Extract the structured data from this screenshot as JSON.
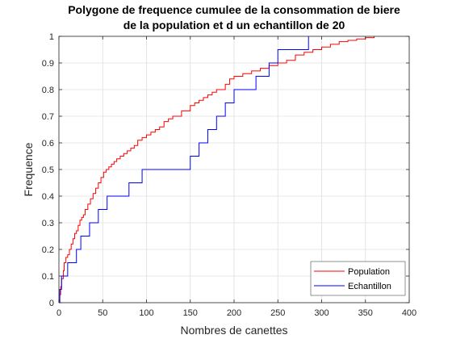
{
  "chart_data": {
    "type": "line",
    "title_lines": [
      "Polygone de frequence cumulee de la consommation de biere",
      "de la population et d un echantillon de 20"
    ],
    "xlabel": "Nombres de canettes",
    "ylabel": "Frequence",
    "xlim": [
      0,
      400
    ],
    "ylim": [
      0,
      1
    ],
    "xticks": [
      0,
      50,
      100,
      150,
      200,
      250,
      300,
      350,
      400
    ],
    "yticks": [
      0,
      0.1,
      0.2,
      0.3,
      0.4,
      0.5,
      0.6,
      0.7,
      0.8,
      0.9,
      1
    ],
    "xtick_labels": [
      "0",
      "50",
      "100",
      "150",
      "200",
      "250",
      "300",
      "350",
      "400"
    ],
    "ytick_labels": [
      "0",
      "0.1",
      "0.2",
      "0.3",
      "0.4",
      "0.5",
      "0.6",
      "0.7",
      "0.8",
      "0.9",
      "1"
    ],
    "grid": true,
    "legend_position": "bottom-right",
    "series": [
      {
        "name": "Population",
        "color": "#ff0000",
        "x": [
          0,
          1,
          2,
          3,
          5,
          6,
          8,
          10,
          12,
          14,
          16,
          18,
          20,
          22,
          24,
          26,
          28,
          30,
          33,
          36,
          39,
          42,
          45,
          48,
          51,
          54,
          57,
          60,
          63,
          66,
          70,
          74,
          78,
          82,
          86,
          90,
          95,
          100,
          105,
          110,
          115,
          120,
          125,
          130,
          140,
          150,
          155,
          160,
          165,
          170,
          175,
          180,
          190,
          195,
          200,
          210,
          220,
          230,
          240,
          250,
          260,
          270,
          280,
          290,
          300,
          310,
          320,
          330,
          340,
          350,
          360
        ],
        "y": [
          0,
          0.03,
          0.06,
          0.09,
          0.12,
          0.15,
          0.17,
          0.18,
          0.2,
          0.22,
          0.24,
          0.26,
          0.27,
          0.29,
          0.31,
          0.32,
          0.33,
          0.35,
          0.37,
          0.39,
          0.41,
          0.43,
          0.45,
          0.47,
          0.49,
          0.5,
          0.51,
          0.52,
          0.53,
          0.54,
          0.55,
          0.56,
          0.57,
          0.58,
          0.59,
          0.61,
          0.62,
          0.63,
          0.64,
          0.65,
          0.66,
          0.68,
          0.69,
          0.7,
          0.72,
          0.74,
          0.75,
          0.76,
          0.77,
          0.78,
          0.79,
          0.8,
          0.82,
          0.84,
          0.85,
          0.86,
          0.87,
          0.88,
          0.89,
          0.9,
          0.91,
          0.93,
          0.94,
          0.95,
          0.96,
          0.97,
          0.98,
          0.985,
          0.99,
          0.995,
          1.0
        ]
      },
      {
        "name": "Echantillon",
        "color": "#0000ff",
        "x": [
          1,
          3,
          10,
          20,
          25,
          35,
          45,
          55,
          80,
          95,
          150,
          160,
          170,
          180,
          190,
          200,
          225,
          240,
          250,
          285
        ],
        "y": [
          0.05,
          0.1,
          0.15,
          0.2,
          0.25,
          0.3,
          0.35,
          0.4,
          0.45,
          0.5,
          0.55,
          0.6,
          0.65,
          0.7,
          0.75,
          0.8,
          0.85,
          0.9,
          0.95,
          1.0
        ]
      }
    ]
  }
}
